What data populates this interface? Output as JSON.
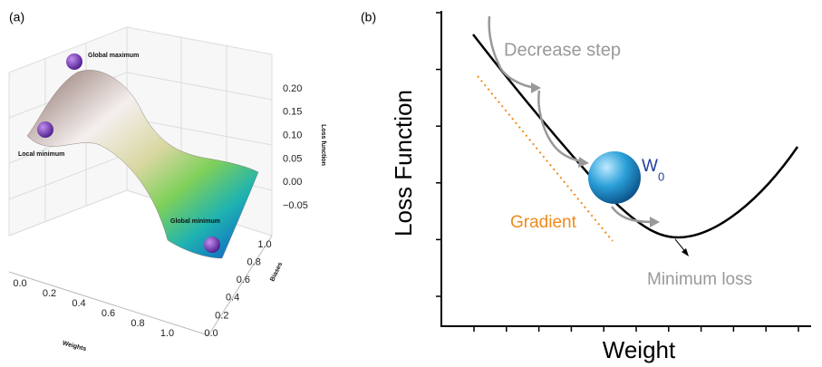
{
  "panel_a": {
    "label": "(a)",
    "annotations": {
      "global_max": "Global maximum",
      "local_min": "Local minimum",
      "global_min": "Global minimum"
    },
    "z_axis": {
      "title": "Loss function",
      "ticks": [
        "0.20",
        "0.15",
        "0.10",
        "0.05",
        "0.00",
        "−0.05"
      ]
    },
    "x_axis": {
      "title": "Weights",
      "ticks": [
        "0.0",
        "0.2",
        "0.4",
        "0.6",
        "0.8",
        "1.0"
      ]
    },
    "y_axis": {
      "title": "Biases",
      "ticks": [
        "1.0",
        "0.8",
        "0.6",
        "0.4",
        "0.2",
        "0.0"
      ]
    }
  },
  "panel_b": {
    "label": "(b)",
    "y_title": "Loss Function",
    "x_title": "Weight",
    "step_label": "Decrease step",
    "ball_label": "W",
    "ball_subscript": "0",
    "gradient_label": "Gradient",
    "minimum_label": "Minimum loss"
  }
}
